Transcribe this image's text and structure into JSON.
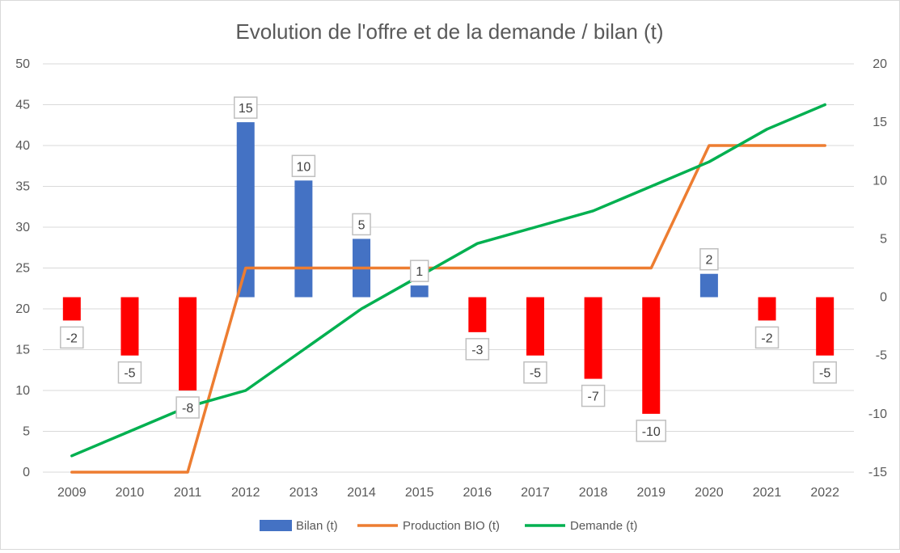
{
  "chart_data": {
    "type": "bar+line",
    "title": "Evolution de l'offre et de la demande / bilan (t)",
    "categories": [
      "2009",
      "2010",
      "2011",
      "2012",
      "2013",
      "2014",
      "2015",
      "2016",
      "2017",
      "2018",
      "2019",
      "2020",
      "2021",
      "2022"
    ],
    "y_left": {
      "min": 0,
      "max": 50,
      "step": 5,
      "ticks": [
        "0",
        "5",
        "10",
        "15",
        "20",
        "25",
        "30",
        "35",
        "40",
        "45",
        "50"
      ]
    },
    "y_right": {
      "min": -15,
      "max": 20,
      "step": 5,
      "ticks": [
        "-15",
        "-10",
        "-5",
        "0",
        "5",
        "10",
        "15",
        "20"
      ]
    },
    "grid": true,
    "legend_position": "bottom",
    "series": [
      {
        "name": "Bilan (t)",
        "type": "bar",
        "axis": "right",
        "values": [
          -2,
          -5,
          -8,
          15,
          10,
          5,
          1,
          -3,
          -5,
          -7,
          -10,
          2,
          -2,
          -5
        ],
        "labels": [
          "-2",
          "-5",
          "-8",
          "15",
          "10",
          "5",
          "1",
          "-3",
          "-5",
          "-7",
          "-10",
          "2",
          "-2",
          "-5"
        ],
        "color_positive": "#4472c4",
        "color_negative": "#ff0000"
      },
      {
        "name": "Production BIO (t)",
        "type": "line",
        "axis": "left",
        "values": [
          0,
          0,
          0,
          25,
          25,
          25,
          25,
          25,
          25,
          25,
          25,
          40,
          40,
          40
        ],
        "color": "#ed7d31"
      },
      {
        "name": "Demande (t)",
        "type": "line",
        "axis": "left",
        "values": [
          2,
          5,
          8,
          10,
          15,
          20,
          24,
          28,
          30,
          32,
          35,
          38,
          42,
          45
        ],
        "color": "#00b050"
      }
    ],
    "colors": {
      "grid": "#d9d9d9",
      "text": "#595959",
      "label_border": "#bfbfbf"
    }
  }
}
